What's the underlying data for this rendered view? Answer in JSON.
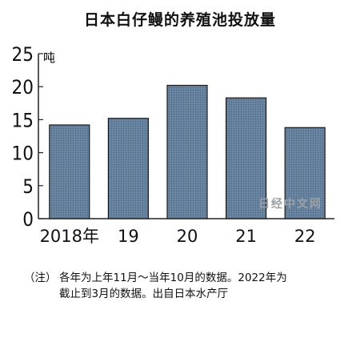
{
  "chart_data": {
    "type": "bar",
    "title": "日本白仔鳗的养殖池投放量",
    "unit": "吨",
    "categories": [
      "2018年",
      "19",
      "20",
      "21",
      "22"
    ],
    "values": [
      14.2,
      15.2,
      20.2,
      18.3,
      13.8
    ],
    "ylim": [
      0,
      25
    ],
    "yticks": [
      0,
      5,
      10,
      15,
      20,
      25
    ],
    "bar_color": "#5f7a97",
    "grid": false
  },
  "watermark": "日经中文网",
  "note": {
    "prefix": "（注）",
    "line1": "各年为上年11月～当年10月的数据。2022年为",
    "line2": "截止到3月的数据。出自日本水产厅"
  }
}
